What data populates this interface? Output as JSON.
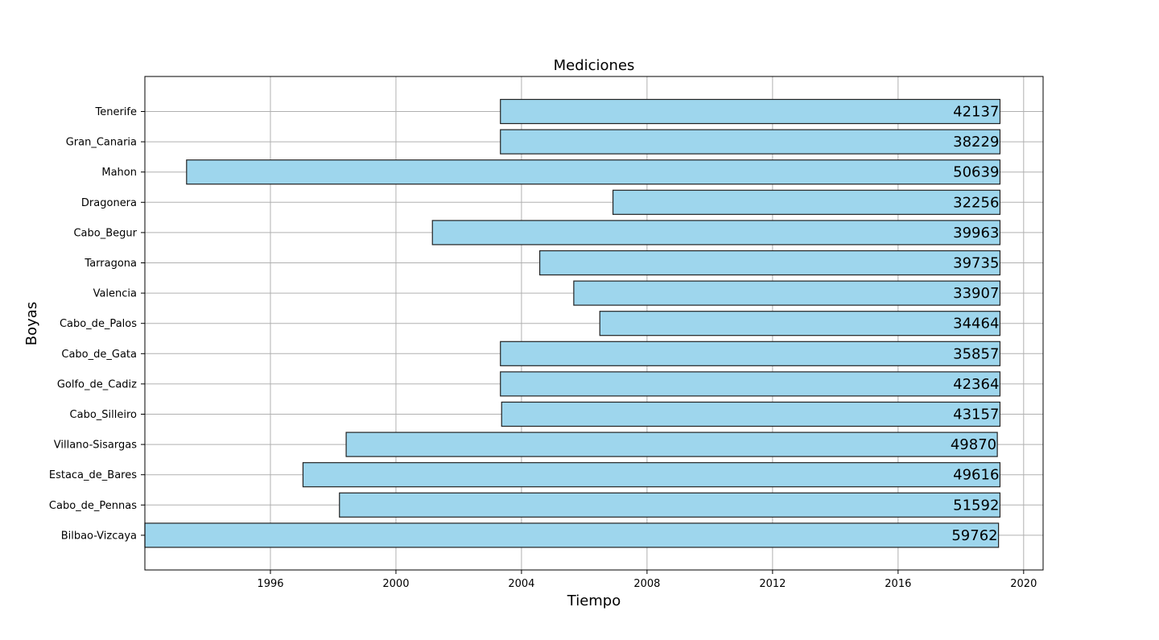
{
  "chart_data": {
    "type": "bar",
    "orientation": "horizontal",
    "title": "Mediciones",
    "xlabel": "Tiempo",
    "ylabel": "Boyas",
    "bar_color": "#9ED6ED",
    "bar_edge_color": "#222222",
    "grid": true,
    "xlim": [
      "1992-01-01",
      "2020-08-15"
    ],
    "x_ticks": [
      "1996",
      "2000",
      "2004",
      "2008",
      "2012",
      "2016",
      "2020"
    ],
    "bars": [
      {
        "name": "Tenerife",
        "start": "2003-05-01",
        "end": "2019-04-01",
        "count": "42137"
      },
      {
        "name": "Gran_Canaria",
        "start": "2003-05-01",
        "end": "2019-04-01",
        "count": "38229"
      },
      {
        "name": "Mahon",
        "start": "1993-05-01",
        "end": "2019-04-01",
        "count": "50639"
      },
      {
        "name": "Dragonera",
        "start": "2006-12-01",
        "end": "2019-04-01",
        "count": "32256"
      },
      {
        "name": "Cabo_Begur",
        "start": "2001-03-01",
        "end": "2019-04-01",
        "count": "39963"
      },
      {
        "name": "Tarragona",
        "start": "2004-08-01",
        "end": "2019-04-01",
        "count": "39735"
      },
      {
        "name": "Valencia",
        "start": "2005-09-01",
        "end": "2019-04-01",
        "count": "33907"
      },
      {
        "name": "Cabo_de_Palos",
        "start": "2006-07-01",
        "end": "2019-04-01",
        "count": "34464"
      },
      {
        "name": "Cabo_de_Gata",
        "start": "2003-05-01",
        "end": "2019-04-01",
        "count": "35857"
      },
      {
        "name": "Golfo_de_Cadiz",
        "start": "2003-05-01",
        "end": "2019-04-01",
        "count": "42364"
      },
      {
        "name": "Cabo_Silleiro",
        "start": "2003-05-15",
        "end": "2019-04-01",
        "count": "43157"
      },
      {
        "name": "Villano-Sisargas",
        "start": "1998-06-01",
        "end": "2019-03-01",
        "count": "49870"
      },
      {
        "name": "Estaca_de_Bares",
        "start": "1997-01-15",
        "end": "2019-04-01",
        "count": "49616"
      },
      {
        "name": "Cabo_de_Pennas",
        "start": "1998-03-15",
        "end": "2019-04-01",
        "count": "51592"
      },
      {
        "name": "Bilbao-Vizcaya",
        "start": "1992-01-01",
        "end": "2019-03-15",
        "count": "59762"
      }
    ]
  }
}
